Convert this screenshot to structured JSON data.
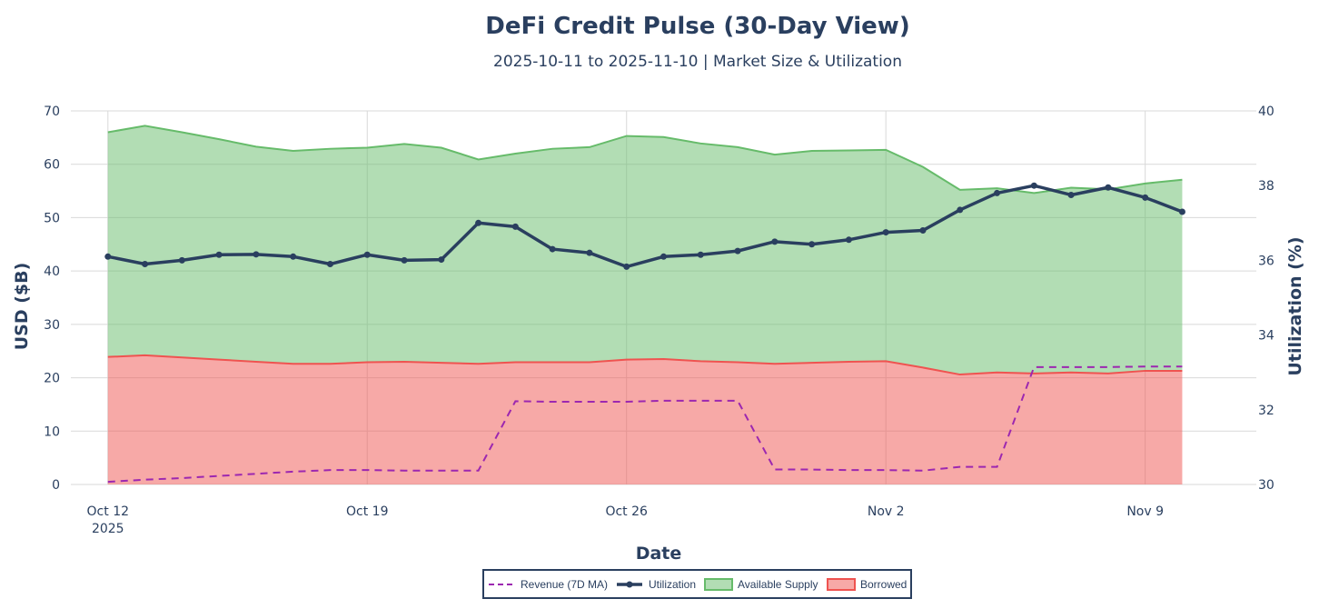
{
  "chart_data": {
    "type": "area",
    "title": "DeFi Credit Pulse (30-Day View)",
    "subtitle": "2025-10-11 to 2025-11-10 | Market Size & Utilization",
    "xlabel": "Date",
    "ylabel": "USD ($B)",
    "y2label": "Utilization (%)",
    "x_ticks": [
      {
        "date": "2025-10-12",
        "label": "Oct 12",
        "sublabel": "2025"
      },
      {
        "date": "2025-10-19",
        "label": "Oct 19",
        "sublabel": ""
      },
      {
        "date": "2025-10-26",
        "label": "Oct 26",
        "sublabel": ""
      },
      {
        "date": "2025-11-02",
        "label": "Nov 2",
        "sublabel": ""
      },
      {
        "date": "2025-11-09",
        "label": "Nov 9",
        "sublabel": ""
      }
    ],
    "xlim": [
      "2025-10-11",
      "2025-11-12"
    ],
    "ylim": [
      0,
      70
    ],
    "yticks": [
      0,
      10,
      20,
      30,
      40,
      50,
      60,
      70
    ],
    "y2lim": [
      30,
      40
    ],
    "y2ticks": [
      30,
      32,
      34,
      36,
      38,
      40
    ],
    "grid": true,
    "legend_position": "bottom-center",
    "x": [
      "2025-10-12",
      "2025-10-13",
      "2025-10-14",
      "2025-10-15",
      "2025-10-16",
      "2025-10-17",
      "2025-10-18",
      "2025-10-19",
      "2025-10-20",
      "2025-10-21",
      "2025-10-22",
      "2025-10-23",
      "2025-10-24",
      "2025-10-25",
      "2025-10-26",
      "2025-10-27",
      "2025-10-28",
      "2025-10-29",
      "2025-10-30",
      "2025-10-31",
      "2025-11-01",
      "2025-11-02",
      "2025-11-03",
      "2025-11-04",
      "2025-11-05",
      "2025-11-06",
      "2025-11-07",
      "2025-11-08",
      "2025-11-09",
      "2025-11-10"
    ],
    "series": [
      {
        "name": "Borrowed",
        "type": "area",
        "axis": "y",
        "color": "#ef5350",
        "values": [
          23.9,
          24.2,
          23.8,
          23.4,
          23.0,
          22.6,
          22.6,
          22.9,
          23.0,
          22.8,
          22.6,
          22.9,
          22.9,
          22.9,
          23.4,
          23.5,
          23.1,
          22.9,
          22.6,
          22.8,
          23.0,
          23.1,
          21.9,
          20.6,
          21.0,
          20.8,
          21.0,
          20.8,
          21.3,
          21.3
        ]
      },
      {
        "name": "Available Supply",
        "type": "area",
        "axis": "y",
        "color": "#66bb6a",
        "values": [
          42.1,
          43.0,
          42.2,
          41.3,
          40.3,
          39.9,
          40.3,
          40.2,
          40.8,
          40.3,
          38.3,
          39.1,
          40.0,
          40.3,
          41.9,
          41.6,
          40.8,
          40.3,
          39.2,
          39.7,
          39.6,
          39.6,
          37.6,
          34.6,
          34.5,
          33.8,
          34.6,
          34.5,
          35.1,
          35.8
        ]
      },
      {
        "name": "Utilization",
        "type": "line",
        "axis": "y2",
        "color": "#2a3f5f",
        "values": [
          36.1,
          35.9,
          36.0,
          36.15,
          36.16,
          36.1,
          35.9,
          36.15,
          36.0,
          36.02,
          37.0,
          36.9,
          36.3,
          36.2,
          35.83,
          36.1,
          36.15,
          36.25,
          36.5,
          36.43,
          36.55,
          36.75,
          36.8,
          37.35,
          37.8,
          38.0,
          37.75,
          37.95,
          37.68,
          37.3
        ]
      },
      {
        "name": "Revenue (7D MA)",
        "type": "line",
        "dash": "dash",
        "axis": "y",
        "color": "#9c27b0",
        "values": [
          0.5,
          0.9,
          1.2,
          1.6,
          2.0,
          2.4,
          2.7,
          2.7,
          2.6,
          2.6,
          2.6,
          15.6,
          15.5,
          15.5,
          15.5,
          15.7,
          15.7,
          15.7,
          2.8,
          2.8,
          2.7,
          2.7,
          2.6,
          3.3,
          3.3,
          22.0,
          22.0,
          22.0,
          22.1,
          22.1
        ]
      }
    ],
    "legend": [
      "Revenue (7D MA)",
      "Utilization",
      "Available Supply",
      "Borrowed"
    ]
  }
}
